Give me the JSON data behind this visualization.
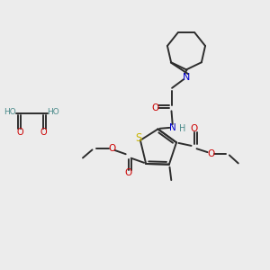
{
  "bg_color": "#ececec",
  "bond_color": "#2d2d2d",
  "S_color": "#c8b400",
  "N_color": "#0000cc",
  "O_color": "#cc0000",
  "teal_color": "#4a8a8a",
  "line_width": 1.4,
  "figsize": [
    3.0,
    3.0
  ],
  "dpi": 100,
  "xlim": [
    0,
    10
  ],
  "ylim": [
    0,
    10
  ]
}
